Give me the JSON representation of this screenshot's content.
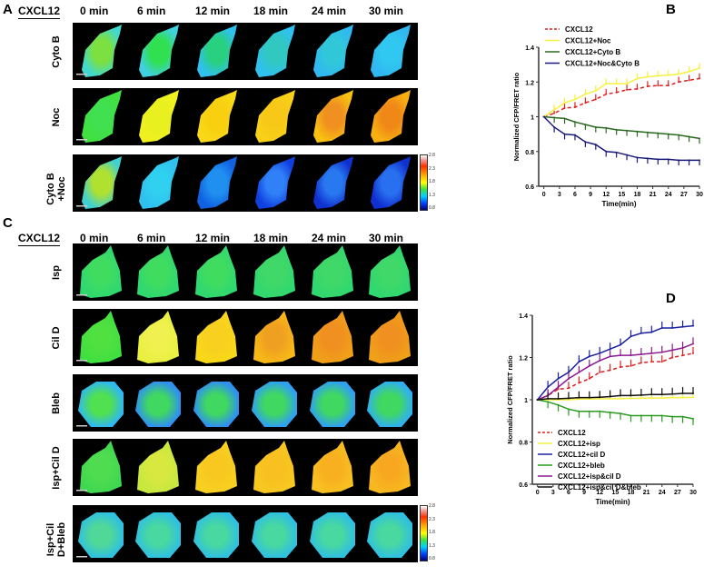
{
  "panels": {
    "a": "A",
    "b": "B",
    "c": "C",
    "d": "D"
  },
  "header": {
    "stimulus": "CXCL12",
    "times": [
      "0 min",
      "6 min",
      "12 min",
      "18 min",
      "24 min",
      "30 min"
    ]
  },
  "colorbar": {
    "labels": [
      "2.8",
      "2.3",
      "1.8",
      "1.3",
      "0.8"
    ]
  },
  "panel_a_rows": [
    {
      "label": [
        "Cyto B"
      ],
      "colors": [
        "#7ce040",
        "#30e050",
        "#28d080",
        "#30c8c0",
        "#30c8d8",
        "#30c8f0"
      ],
      "edge": [
        "#40d8d0",
        "#40d0e0",
        "#30c0f0",
        "#30c0f0",
        "#30b8f0",
        "#30b8f0"
      ]
    },
    {
      "label": [
        "Noc"
      ],
      "colors": [
        "#40e050",
        "#e8f020",
        "#f8d010",
        "#f8c818",
        "#f09020",
        "#f08818"
      ],
      "edge": [
        "#40e040",
        "#f0f020",
        "#f8d818",
        "#f8d018",
        "#f8c010",
        "#f8b010"
      ]
    },
    {
      "label": [
        "Cyto B",
        "+Noc"
      ],
      "colors": [
        "#b0e030",
        "#30d0f0",
        "#2090f0",
        "#3080f8",
        "#2878f0",
        "#2870f0"
      ],
      "edge": [
        "#40d0d0",
        "#30c0f0",
        "#1060e0",
        "#1040e0",
        "#1030d0",
        "#1030d0"
      ]
    }
  ],
  "panel_c_rows": [
    {
      "label": [
        "Isp"
      ],
      "colors": [
        "#40dc60",
        "#40dc60",
        "#40dc60",
        "#40d868",
        "#40d868",
        "#40d868"
      ],
      "edge": [
        "#30d870",
        "#30d870",
        "#30d870",
        "#30d870",
        "#30d870",
        "#30d870"
      ]
    },
    {
      "label": [
        "Cil D"
      ],
      "colors": [
        "#50e040",
        "#f0f050",
        "#f8d020",
        "#f0a020",
        "#f09020",
        "#f09020"
      ],
      "edge": [
        "#40e040",
        "#e8f040",
        "#f8d818",
        "#f8b818",
        "#f0a018",
        "#f0a018"
      ]
    },
    {
      "label": [
        "Bleb"
      ],
      "colors": [
        "#50e050",
        "#40d860",
        "#40d860",
        "#40d860",
        "#40d860",
        "#40d860"
      ],
      "edge": [
        "#30b8f0",
        "#3090f0",
        "#3090f0",
        "#30a0f0",
        "#30a0f0",
        "#30b0f0"
      ]
    },
    {
      "label": [
        "Isp+Cil D"
      ],
      "colors": [
        "#50dc50",
        "#d8e840",
        "#f8c820",
        "#f8c020",
        "#f8b020",
        "#f8a820"
      ],
      "edge": [
        "#40d850",
        "#c8e840",
        "#f8d020",
        "#f8c820",
        "#f8c020",
        "#f8b820"
      ]
    },
    {
      "label": [
        "Isp+Cil",
        "D+Bleb"
      ],
      "colors": [
        "#50d898",
        "#48d8a0",
        "#48d8a0",
        "#48d8a0",
        "#48d8a0",
        "#48d8a0"
      ],
      "edge": [
        "#30c0e0",
        "#30c0e0",
        "#30c0e0",
        "#30c0e0",
        "#30c0e0",
        "#30c0e0"
      ]
    }
  ],
  "chart_data": [
    {
      "panel": "B",
      "type": "line",
      "ylabel": "Normalized CFP/FRET ratio",
      "xlabel": "Time(min)",
      "xlim": [
        -1,
        30
      ],
      "ylim": [
        0.6,
        1.4
      ],
      "xticks": [
        0,
        3,
        6,
        9,
        12,
        15,
        18,
        21,
        24,
        27,
        30
      ],
      "yticks": [
        0.6,
        0.8,
        1.0,
        1.2,
        1.4
      ],
      "legend": "top-left",
      "x": [
        0,
        2,
        4,
        6,
        8,
        10,
        12,
        14,
        16,
        18,
        20,
        22,
        24,
        26,
        28,
        30
      ],
      "series": [
        {
          "name": "CXCL12",
          "color": "#e02020",
          "dashed": true,
          "values": [
            1.0,
            1.02,
            1.05,
            1.055,
            1.08,
            1.1,
            1.13,
            1.14,
            1.155,
            1.16,
            1.175,
            1.18,
            1.18,
            1.2,
            1.21,
            1.22
          ]
        },
        {
          "name": "CXCL12+Noc",
          "color": "#f8f040",
          "values": [
            1.0,
            1.04,
            1.08,
            1.1,
            1.13,
            1.15,
            1.19,
            1.19,
            1.19,
            1.22,
            1.23,
            1.235,
            1.24,
            1.245,
            1.26,
            1.28
          ]
        },
        {
          "name": "CXCL12+Cyto B",
          "color": "#2a6a20",
          "values": [
            1.0,
            0.995,
            0.99,
            0.97,
            0.955,
            0.94,
            0.935,
            0.925,
            0.92,
            0.915,
            0.91,
            0.905,
            0.9,
            0.895,
            0.885,
            0.875
          ]
        },
        {
          "name": "CXCL12+Noc&Cyto B",
          "color": "#1a1a7a",
          "values": [
            1.0,
            0.94,
            0.9,
            0.895,
            0.855,
            0.84,
            0.8,
            0.795,
            0.78,
            0.765,
            0.76,
            0.755,
            0.755,
            0.75,
            0.75,
            0.75
          ]
        }
      ]
    },
    {
      "panel": "D",
      "type": "line",
      "ylabel": "Normalized CFP/FRET ratio",
      "xlabel": "Time(min)",
      "xlim": [
        -1,
        30
      ],
      "ylim": [
        0.6,
        1.4
      ],
      "xticks": [
        0,
        3,
        6,
        9,
        12,
        15,
        18,
        21,
        24,
        27,
        30
      ],
      "yticks": [
        0.6,
        0.8,
        1.0,
        1.2,
        1.4
      ],
      "legend": "bottom-left",
      "x": [
        0,
        2,
        4,
        6,
        8,
        10,
        12,
        14,
        16,
        18,
        20,
        22,
        24,
        26,
        28,
        30
      ],
      "series": [
        {
          "name": "CXCL12",
          "color": "#e02020",
          "dashed": true,
          "values": [
            1.0,
            1.02,
            1.05,
            1.055,
            1.08,
            1.1,
            1.13,
            1.14,
            1.155,
            1.16,
            1.175,
            1.18,
            1.18,
            1.2,
            1.21,
            1.22
          ]
        },
        {
          "name": "CXCL12+isp",
          "color": "#f8f040",
          "values": [
            1.0,
            1.0,
            1.0,
            1.0,
            1.003,
            1.003,
            1.005,
            1.005,
            1.005,
            1.007,
            1.007,
            1.008,
            1.008,
            1.01,
            1.01,
            1.012
          ]
        },
        {
          "name": "CXCL12+cil D",
          "color": "#1a20a0",
          "values": [
            1.0,
            1.06,
            1.1,
            1.13,
            1.18,
            1.205,
            1.22,
            1.24,
            1.26,
            1.3,
            1.315,
            1.32,
            1.34,
            1.34,
            1.345,
            1.35
          ]
        },
        {
          "name": "CXCL12+bleb",
          "color": "#2a9a20",
          "values": [
            1.0,
            0.99,
            0.975,
            0.955,
            0.945,
            0.945,
            0.945,
            0.94,
            0.935,
            0.925,
            0.925,
            0.925,
            0.925,
            0.92,
            0.92,
            0.91
          ]
        },
        {
          "name": "CXCL12+isp&cil D",
          "color": "#8a1a90",
          "values": [
            1.0,
            1.02,
            1.06,
            1.1,
            1.13,
            1.16,
            1.185,
            1.205,
            1.21,
            1.21,
            1.215,
            1.22,
            1.225,
            1.235,
            1.245,
            1.265
          ]
        },
        {
          "name": "CXCL12+isp&cil D&bleb",
          "color": "#111111",
          "values": [
            1.0,
            1.005,
            1.005,
            1.007,
            1.01,
            1.01,
            1.012,
            1.015,
            1.02,
            1.02,
            1.022,
            1.025,
            1.025,
            1.027,
            1.03,
            1.03
          ]
        }
      ]
    }
  ]
}
